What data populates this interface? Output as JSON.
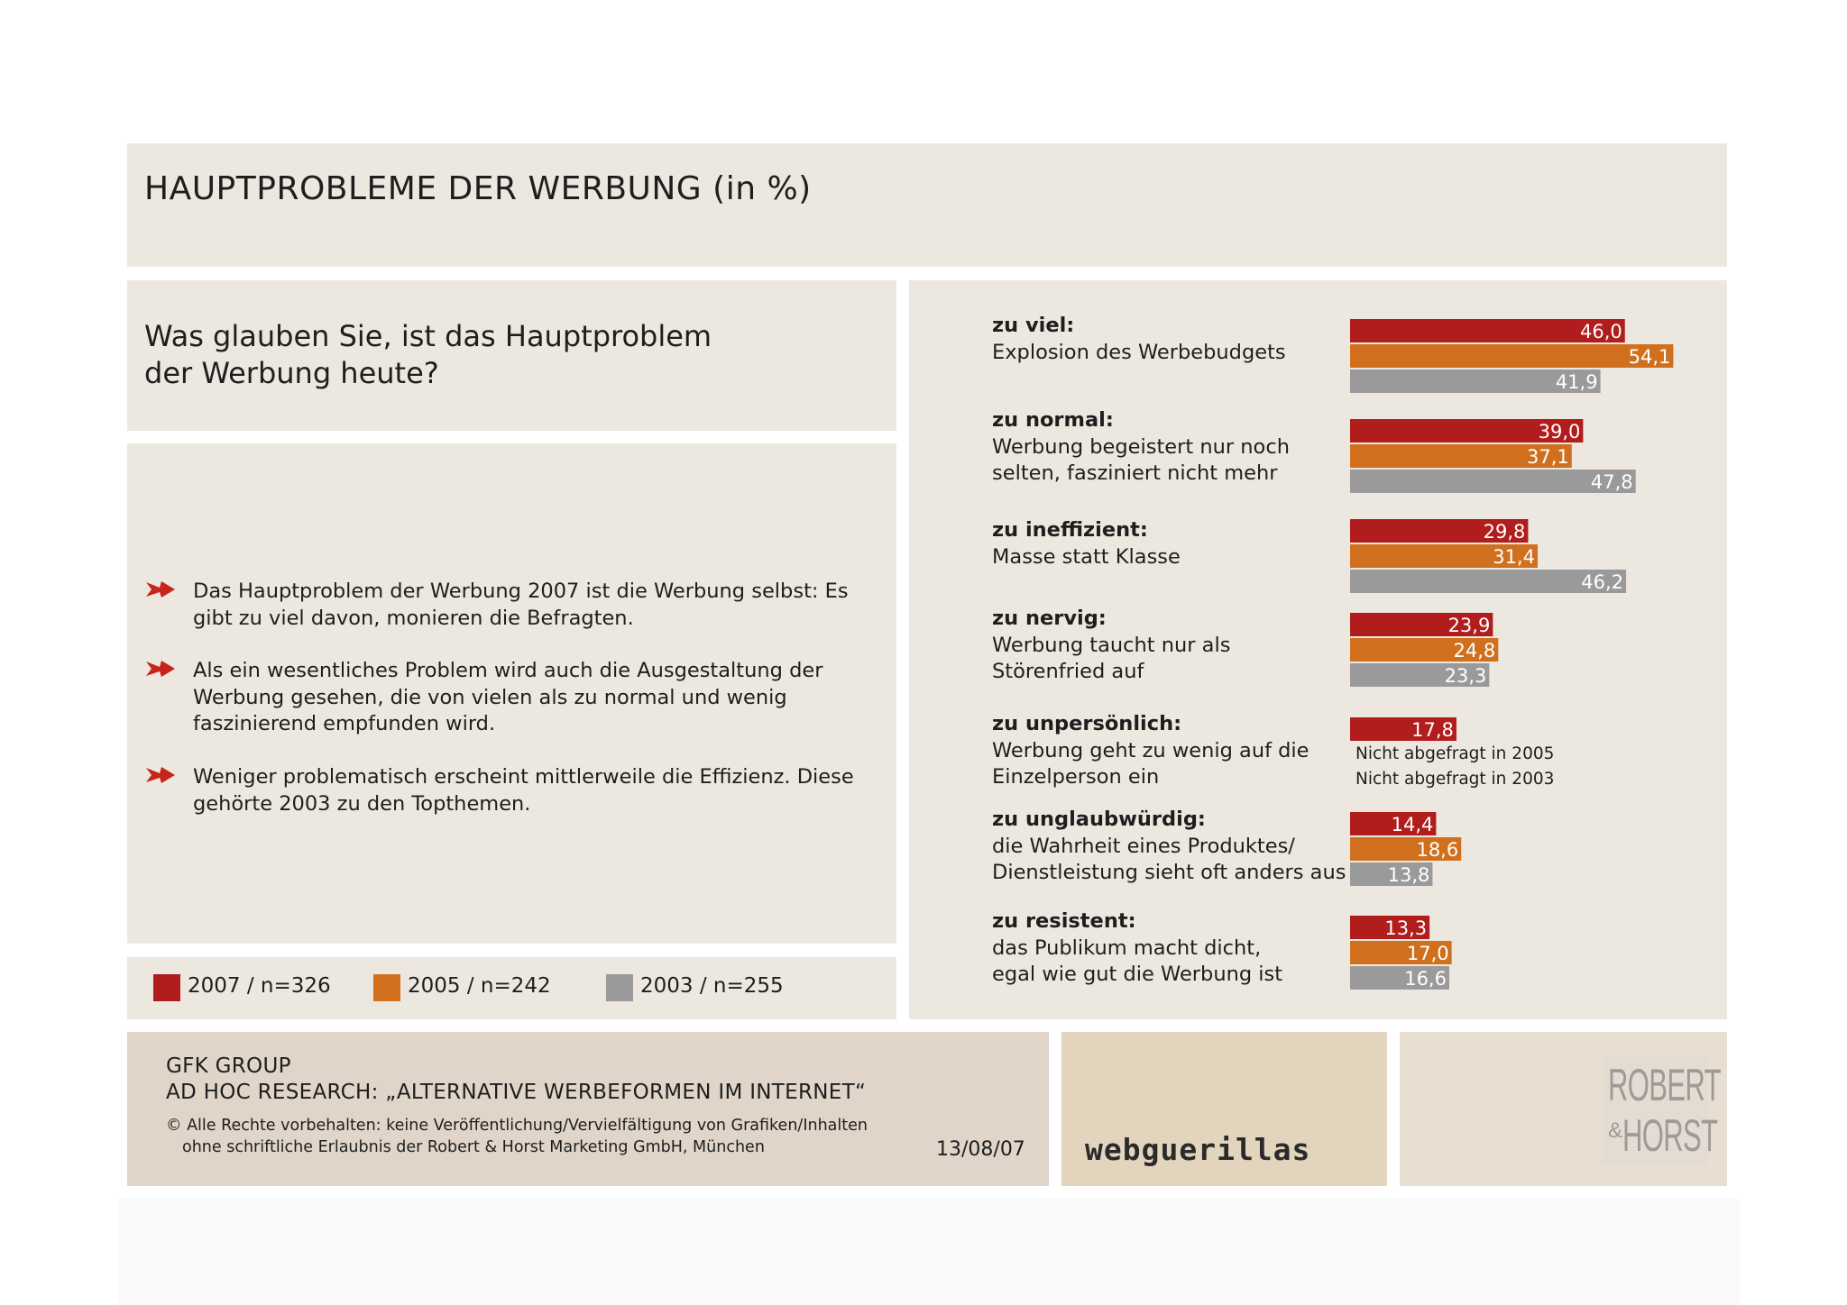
{
  "title": "HAUPTPROBLEME DER WERBUNG (in %)",
  "question": {
    "line1": "Was glauben Sie, ist das Hauptproblem",
    "line2": "der Werbung heute?"
  },
  "bullets": [
    {
      "icon": "red-arrow-icon",
      "text": "Das Hauptproblem der Werbung 2007 ist die Werbung selbst: Es gibt zu viel davon, monieren die Befragten."
    },
    {
      "icon": "red-arrow-icon",
      "text": "Als ein wesentliches Problem wird auch die  Ausgestaltung der Werbung gesehen, die von vielen als zu normal und wenig faszinierend empfunden wird."
    },
    {
      "icon": "red-arrow-icon",
      "text": "Weniger problematisch erscheint mittlerweile die Effizienz. Diese gehörte 2003 zu den Topthemen."
    }
  ],
  "legend": [
    {
      "label": "2007 / n=326",
      "color": "#b11c1c"
    },
    {
      "label": "2005 / n=242",
      "color": "#d0701f"
    },
    {
      "label": "2003 / n=255",
      "color": "#9a9a9a"
    }
  ],
  "chart_data": {
    "type": "bar",
    "orientation": "horizontal",
    "series": [
      {
        "name": "2007 / n=326",
        "color": "#b11c1c",
        "values": [
          46.0,
          39.0,
          29.8,
          23.9,
          17.8,
          14.4,
          13.3
        ]
      },
      {
        "name": "2005 / n=242",
        "color": "#d0701f",
        "values": [
          54.1,
          37.1,
          31.4,
          24.8,
          null,
          18.6,
          17.0
        ]
      },
      {
        "name": "2003 / n=255",
        "color": "#9a9a9a",
        "values": [
          41.9,
          47.8,
          46.2,
          23.3,
          null,
          13.8,
          16.6
        ]
      }
    ],
    "value_labels": [
      [
        "46,0",
        "54,1",
        "41,9"
      ],
      [
        "39,0",
        "37,1",
        "47,8"
      ],
      [
        "29,8",
        "31,4",
        "46,2"
      ],
      [
        "23,9",
        "24,8",
        "23,3"
      ],
      [
        "17,8",
        null,
        null
      ],
      [
        "14,4",
        "18,6",
        "13,8"
      ],
      [
        "13,3",
        "17,0",
        "16,6"
      ]
    ],
    "categories": [
      {
        "head": "zu viel:",
        "lines": [
          "Explosion des Werbebudgets"
        ]
      },
      {
        "head": "zu normal:",
        "lines": [
          "Werbung begeistert nur noch",
          "selten, fasziniert nicht mehr"
        ]
      },
      {
        "head": "zu ineffizient:",
        "lines": [
          "Masse statt Klasse"
        ]
      },
      {
        "head": "zu nervig:",
        "lines": [
          "Werbung taucht nur als",
          "Störenfried auf"
        ]
      },
      {
        "head": "zu unpersönlich:",
        "lines": [
          "Werbung geht zu wenig auf die",
          "Einzelperson ein"
        ]
      },
      {
        "head": "zu unglaubwürdig:",
        "lines": [
          "die Wahrheit eines Produktes/",
          "Dienstleistung sieht oft anders aus"
        ]
      },
      {
        "head": "zu resistent:",
        "lines": [
          "das Publikum macht dicht,",
          "egal wie gut die Werbung ist"
        ]
      }
    ],
    "not_asked": [
      "Nicht abgefragt in 2005",
      "Nicht abgefragt in 2003"
    ],
    "xlim": [
      0,
      60
    ]
  },
  "source": {
    "line1": "GFK GROUP",
    "line2": "AD HOC RESEARCH: „ALTERNATIVE WERBEFORMEN IM INTERNET“",
    "line3": "© Alle Rechte vorbehalten: keine Veröffentlichung/Vervielfältigung von Grafiken/Inhalten",
    "line4": "ohne schriftliche Erlaubnis der Robert & Horst Marketing GmbH, München",
    "date": "13/08/07"
  },
  "logos": {
    "webguerillas": "webguerillas",
    "rh_line1": "ROBERT",
    "rh_amp": "&",
    "rh_line2": "HORST"
  }
}
